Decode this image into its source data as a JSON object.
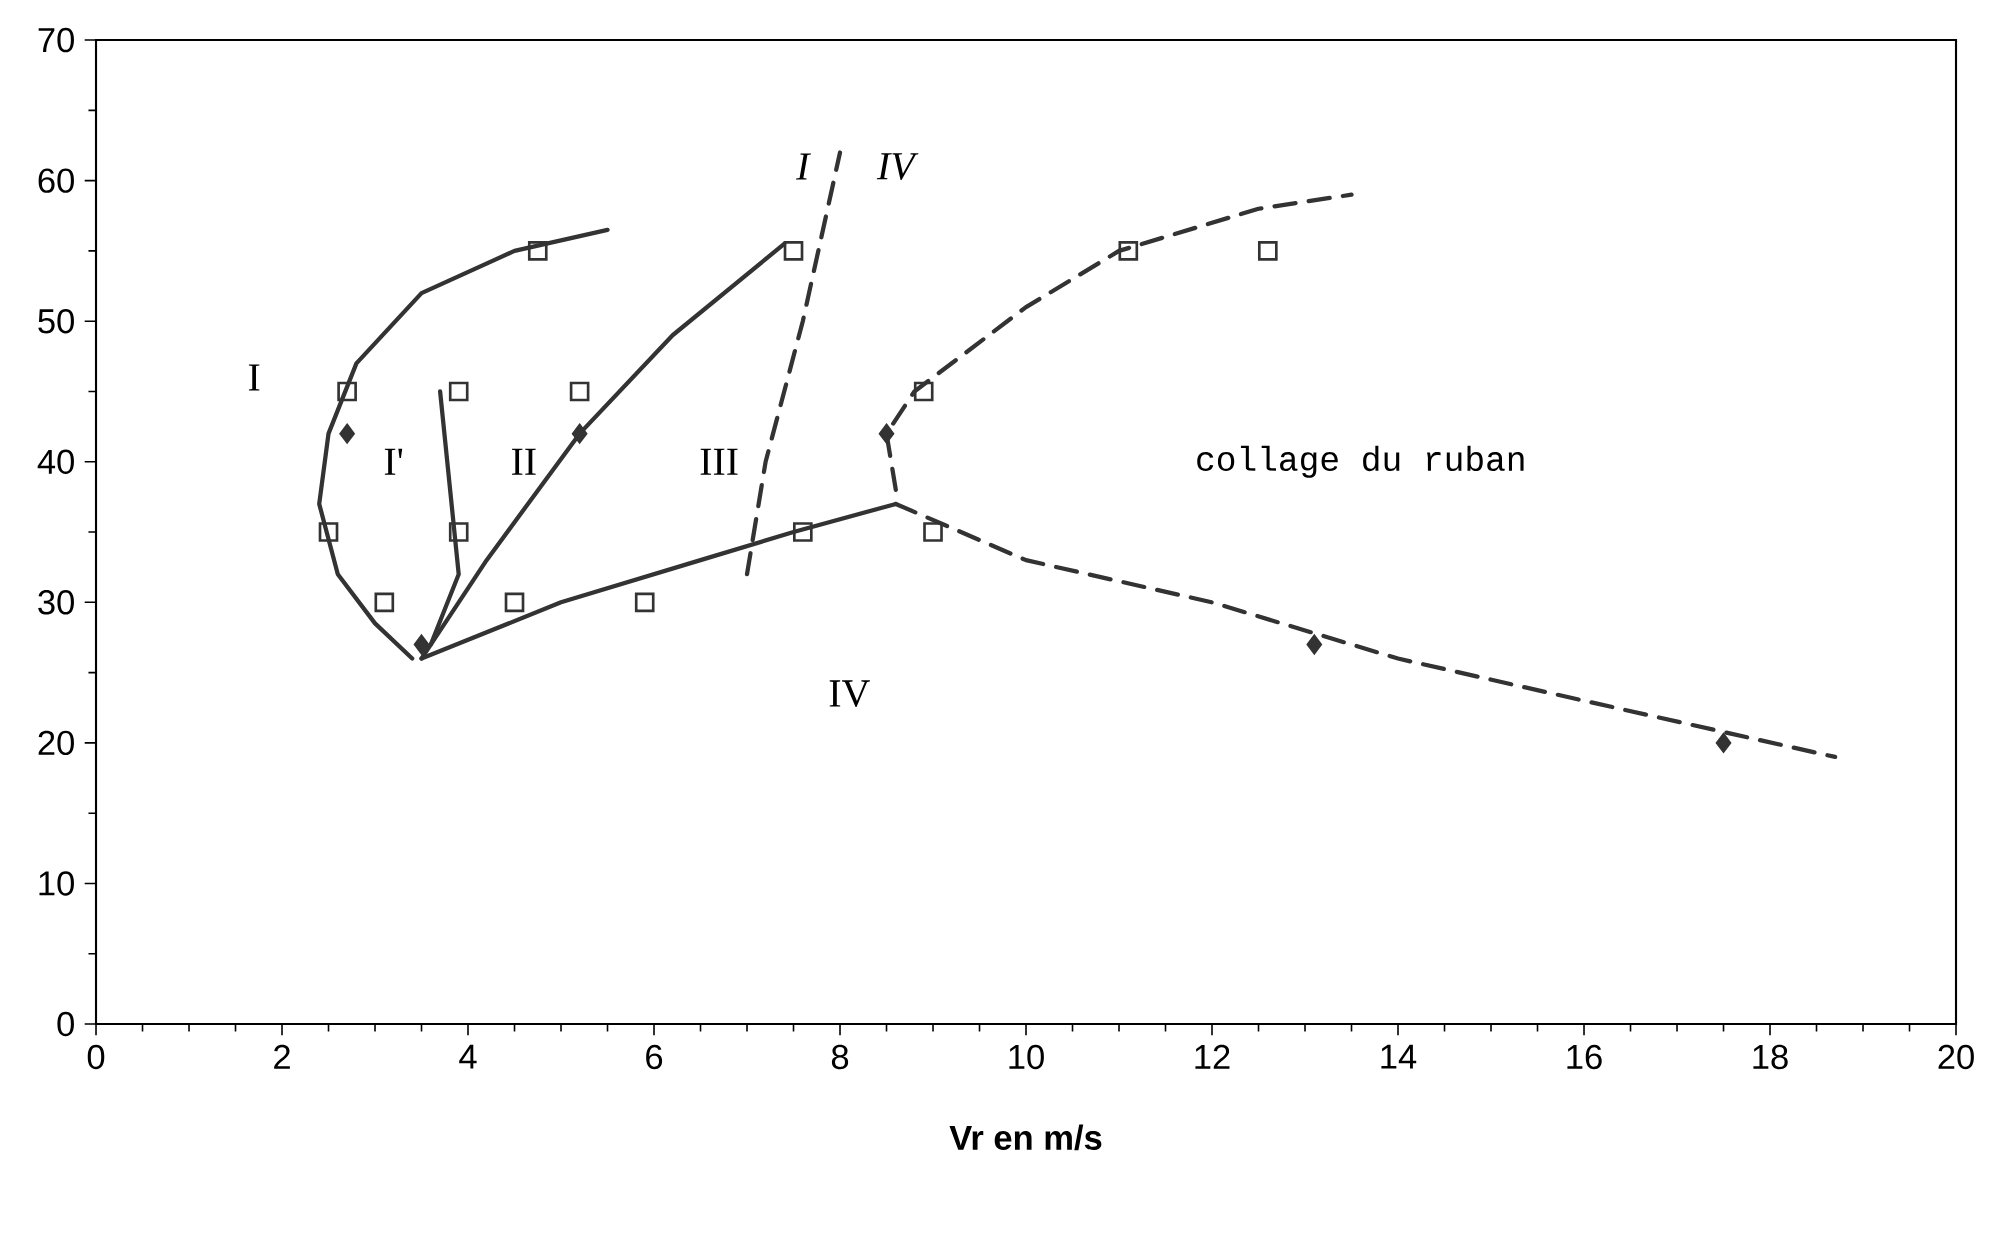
{
  "chart_data": {
    "type": "scatter",
    "xlabel": "**Vr**   **en m/s**",
    "xlim": [
      0,
      20
    ],
    "ylim": [
      0,
      70
    ],
    "xticks": [
      0,
      2,
      4,
      6,
      8,
      10,
      12,
      14,
      16,
      18,
      20
    ],
    "yticks": [
      0,
      10,
      20,
      30,
      40,
      50,
      60,
      70
    ],
    "grid": false,
    "series": [
      {
        "type": "line",
        "color": "#333333",
        "line_style": "solid",
        "marker": "none",
        "x": [
          5.5,
          4.5,
          3.5,
          2.8,
          2.5,
          2.4,
          2.6,
          3.0,
          3.4
        ],
        "values": [
          56.5,
          55,
          52,
          47,
          42,
          37,
          32,
          28.5,
          26
        ]
      },
      {
        "type": "line",
        "color": "#333333",
        "line_style": "solid",
        "marker": "none",
        "x": [
          3.7,
          3.9,
          3.6
        ],
        "values": [
          45,
          32,
          27
        ]
      },
      {
        "type": "line",
        "color": "#333333",
        "line_style": "solid",
        "marker": "none",
        "x": [
          3.5,
          4.2,
          5.2,
          6.2,
          7.4
        ],
        "values": [
          26,
          33,
          42,
          49,
          55.5
        ]
      },
      {
        "type": "line",
        "color": "#333333",
        "line_style": "solid",
        "marker": "none",
        "x": [
          3.5,
          5,
          6.5,
          7.5,
          8.6
        ],
        "values": [
          26,
          30,
          33,
          35,
          37
        ]
      },
      {
        "type": "line",
        "color": "#333333",
        "line_style": "dashed",
        "marker": "none",
        "x": [
          7.0,
          7.2,
          7.6,
          8.0
        ],
        "values": [
          32,
          40,
          50,
          62
        ]
      },
      {
        "type": "line",
        "color": "#333333",
        "line_style": "dashed",
        "marker": "none",
        "x": [
          8.6,
          8.5,
          8.8,
          10,
          11,
          12.5,
          13.5
        ],
        "values": [
          38,
          42,
          45,
          51,
          55,
          58,
          59
        ]
      },
      {
        "type": "line",
        "color": "#333333",
        "line_style": "dashed",
        "marker": "none",
        "x": [
          8.6,
          10,
          12,
          14,
          16,
          18.7
        ],
        "values": [
          37,
          33,
          30,
          26,
          23,
          19
        ]
      },
      {
        "color": "#333333",
        "marker": "square",
        "x": [
          4.75,
          7.5,
          11.1,
          12.6,
          2.7,
          3.9,
          5.2,
          8.9,
          2.5,
          3.9,
          7.6,
          9.0,
          3.1,
          4.5,
          5.9
        ],
        "values": [
          55,
          55,
          55,
          55,
          45,
          45,
          45,
          45,
          35,
          35,
          35,
          35,
          30,
          30,
          30
        ]
      },
      {
        "color": "#333333",
        "marker": "diamond",
        "x": [
          2.7,
          5.2,
          3.5,
          8.5,
          13.1,
          17.5
        ],
        "values": [
          42,
          42,
          27,
          42,
          27,
          20
        ]
      }
    ],
    "annotations": [
      "I",
      "I'",
      "II",
      "III",
      "IV",
      "collage du ruban",
      "I",
      "IV"
    ]
  }
}
